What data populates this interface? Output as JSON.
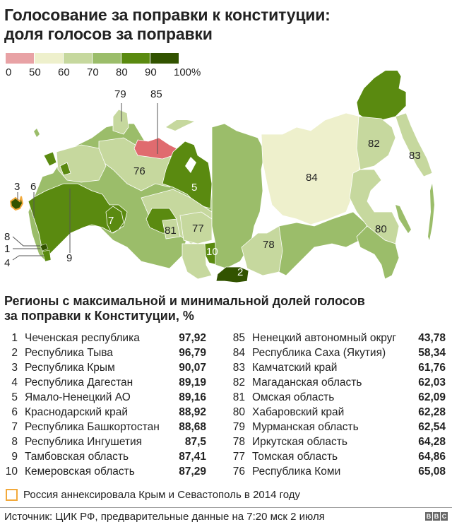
{
  "header": {
    "title_line1": "Голосование за поправки к конституции:",
    "title_line2": "доля голосов за поправки"
  },
  "legend": {
    "swatches": [
      {
        "range": "0-50",
        "color": "#e8a2a5"
      },
      {
        "range": "50-60",
        "color": "#eef0cc"
      },
      {
        "range": "60-70",
        "color": "#c6d89e"
      },
      {
        "range": "70-80",
        "color": "#9bbd6a"
      },
      {
        "range": "80-90",
        "color": "#5a8a10"
      },
      {
        "range": "90-100",
        "color": "#325300"
      }
    ],
    "ticks": [
      "0",
      "50",
      "60",
      "70",
      "80",
      "90",
      "100%"
    ]
  },
  "map": {
    "labels": {
      "l1": "1",
      "l2": "2",
      "l3": "3",
      "l4": "4",
      "l5": "5",
      "l6": "6",
      "l7": "7",
      "l8": "8",
      "l9": "9",
      "l10": "10",
      "l76": "76",
      "l77": "77",
      "l78": "78",
      "l79": "79",
      "l80": "80",
      "l81": "81",
      "l82": "82",
      "l83": "83",
      "l84": "84",
      "l85": "85"
    },
    "crimea_outline_color": "#f2a93b"
  },
  "chart_data": {
    "type": "table",
    "title": "Голосование за поправки к конституции: доля голосов за поправки",
    "subtitle": "Регионы с максимальной и минимальной долей голосов за поправки к Конституции, %",
    "legend_bins": [
      0,
      50,
      60,
      70,
      80,
      90,
      100
    ],
    "top": [
      {
        "rank": "1",
        "region": "Чеченская республика",
        "value": "97,92"
      },
      {
        "rank": "2",
        "region": "Республика Тыва",
        "value": "96,79"
      },
      {
        "rank": "3",
        "region": "Республика Крым",
        "value": "90,07"
      },
      {
        "rank": "4",
        "region": "Республика Дагестан",
        "value": "89,19"
      },
      {
        "rank": "5",
        "region": "Ямало-Ненецкий АО",
        "value": "89,16"
      },
      {
        "rank": "6",
        "region": "Краснодарский край",
        "value": "88,92"
      },
      {
        "rank": "7",
        "region": "Республика Башкортостан",
        "value": "88,68"
      },
      {
        "rank": "8",
        "region": "Республика Ингушетия",
        "value": "87,5"
      },
      {
        "rank": "9",
        "region": "Тамбовская область",
        "value": "87,41"
      },
      {
        "rank": "10",
        "region": "Кемеровская область",
        "value": "87,29"
      }
    ],
    "bottom": [
      {
        "rank": "85",
        "region": "Ненецкий автономный округ",
        "value": "43,78"
      },
      {
        "rank": "84",
        "region": "Республика Саха (Якутия)",
        "value": "58,34"
      },
      {
        "rank": "83",
        "region": "Камчатский край",
        "value": "61,76"
      },
      {
        "rank": "82",
        "region": "Магаданская область",
        "value": "62,03"
      },
      {
        "rank": "81",
        "region": "Омская область",
        "value": "62,09"
      },
      {
        "rank": "80",
        "region": "Хабаровский край",
        "value": "62,28"
      },
      {
        "rank": "79",
        "region": "Мурманская область",
        "value": "62,54"
      },
      {
        "rank": "78",
        "region": "Иркутская область",
        "value": "64,28"
      },
      {
        "rank": "77",
        "region": "Томская область",
        "value": "64,86"
      },
      {
        "rank": "76",
        "region": "Республика Коми",
        "value": "65,08"
      }
    ]
  },
  "subtitle": {
    "line1": "Регионы с максимальной и минимальной долей голосов",
    "line2": "за поправки к Конституции, %"
  },
  "note": "Россия аннексировала Крым и Севастополь в 2014 году",
  "footer": {
    "source": "Источник: ЦИК РФ, предварительные данные на 7:20 мск 2 июля",
    "logo": [
      "B",
      "B",
      "C"
    ]
  }
}
